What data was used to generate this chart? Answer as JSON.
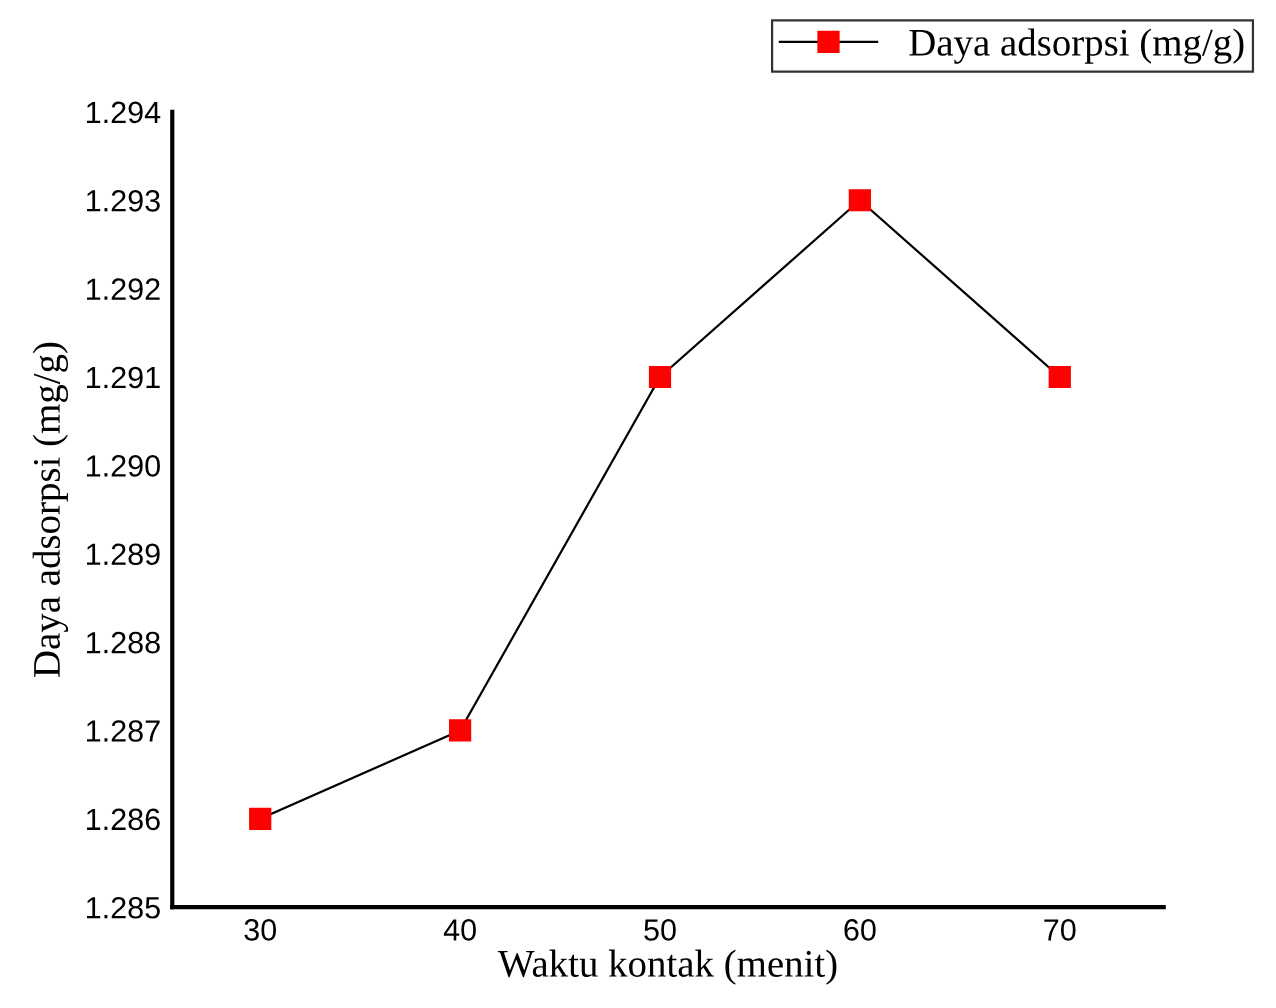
{
  "chart_data": {
    "type": "line",
    "xlabel": "Waktu kontak (menit)",
    "ylabel": "Daya adsorpsi (mg/g)",
    "x": [
      30,
      40,
      50,
      60,
      70
    ],
    "series": [
      {
        "name": "Daya adsorpsi (mg/g)",
        "color": "#ff0000",
        "values": [
          1.286,
          1.287,
          1.291,
          1.293,
          1.291
        ]
      }
    ],
    "xlim": [
      25.6,
      75.2
    ],
    "xticks": [
      30,
      40,
      50,
      60,
      70
    ],
    "ylim": [
      1.285,
      1.294
    ],
    "yticks": [
      {
        "value": 1.285,
        "label": "1.285"
      },
      {
        "value": 1.286,
        "label": "1.286"
      },
      {
        "value": 1.287,
        "label": "1.287"
      },
      {
        "value": 1.288,
        "label": "1.288"
      },
      {
        "value": 1.289,
        "label": "1.289"
      },
      {
        "value": 1.29,
        "label": "1.290"
      },
      {
        "value": 1.291,
        "label": "1.291"
      },
      {
        "value": 1.292,
        "label": "1.292"
      },
      {
        "value": 1.293,
        "label": "1.293"
      },
      {
        "value": 1.294,
        "label": "1.294"
      }
    ],
    "marker": "square",
    "line_style": "solid",
    "grid": false,
    "legend": "top right"
  }
}
